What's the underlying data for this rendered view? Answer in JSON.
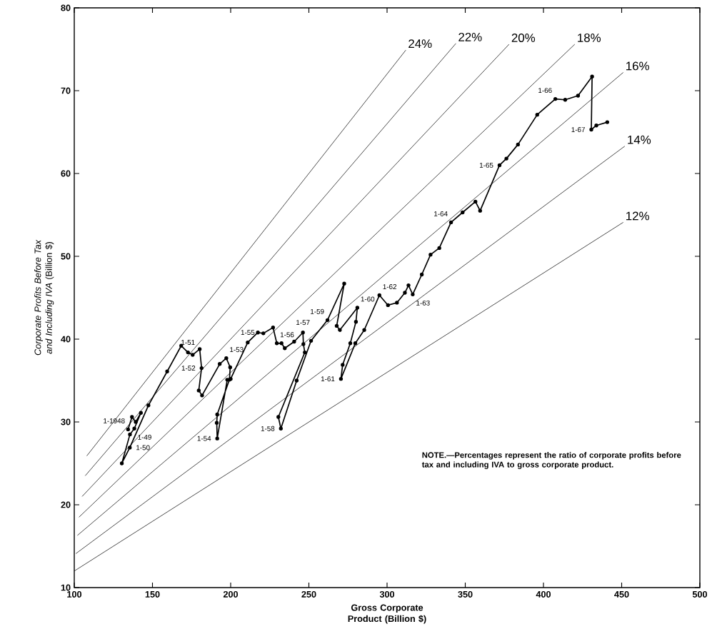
{
  "chart_data": {
    "type": "line",
    "xlabel": "Gross Corporate Product (Billion $)",
    "ylabel": "*Corporate Profits Before Tax and Including IVA* (Billion $)",
    "xlim": [
      100,
      500
    ],
    "ylim": [
      10,
      80
    ],
    "xticks": [
      100,
      150,
      200,
      250,
      300,
      350,
      400,
      450,
      500
    ],
    "yticks": [
      10,
      20,
      30,
      40,
      50,
      60,
      70,
      80
    ],
    "series": [
      {
        "color": "#000000",
        "marker": "circle",
        "x": [
          134.4,
          136.9,
          139.3,
          142.6,
          138.4,
          135.6,
          130.4,
          135.5,
          147.4,
          159.4,
          168.4,
          172.7,
          175.7,
          180.2,
          181.4,
          179.6,
          181.7,
          193.0,
          197.2,
          199.7,
          199.2,
          191.4,
          191.1,
          191.4,
          197.8,
          200.0,
          210.9,
          217.4,
          220.9,
          227.1,
          229.5,
          232.5,
          234.6,
          240.6,
          246.2,
          246.5,
          247.4,
          230.5,
          232.1,
          242.2,
          251.4,
          261.9,
          272.6,
          267.8,
          269.8,
          281.0,
          280.1,
          276.5,
          271.6,
          270.5,
          279.7,
          285.4,
          295.1,
          300.6,
          306.3,
          311.4,
          313.7,
          316.4,
          322.2,
          327.8,
          333.4,
          340.9,
          348.3,
          356.5,
          359.5,
          371.9,
          376.3,
          383.7,
          396.0,
          407.6,
          413.9,
          422.1,
          431.1,
          430.6,
          433.8,
          440.8
        ],
        "values": [
          29.1,
          30.6,
          30.0,
          31.1,
          29.2,
          28.5,
          25.0,
          26.9,
          32.0,
          36.1,
          39.2,
          38.4,
          38.1,
          38.8,
          36.5,
          33.8,
          33.2,
          37.0,
          37.7,
          36.6,
          35.1,
          30.9,
          29.9,
          28.0,
          35.1,
          35.2,
          39.6,
          40.8,
          40.7,
          41.4,
          39.5,
          39.5,
          38.9,
          39.7,
          40.8,
          39.4,
          38.4,
          30.6,
          29.2,
          35.0,
          39.8,
          42.3,
          46.7,
          41.6,
          41.1,
          43.8,
          42.1,
          39.5,
          36.9,
          35.2,
          39.5,
          41.1,
          45.3,
          44.1,
          44.4,
          45.6,
          46.5,
          45.4,
          47.8,
          50.2,
          51.0,
          54.1,
          55.3,
          56.6,
          55.5,
          61.0,
          61.8,
          63.5,
          67.1,
          69.0,
          68.9,
          69.4,
          71.7,
          65.3,
          65.8,
          66.2
        ]
      },
      {
        "name": "24%",
        "color": "#000000",
        "marker": "none",
        "x": [
          108,
          312
        ],
        "values": [
          25.9,
          74.9
        ]
      },
      {
        "name": "22%",
        "color": "#000000",
        "marker": "none",
        "x": [
          107,
          344
        ],
        "values": [
          23.5,
          75.7
        ]
      },
      {
        "name": "20%",
        "color": "#000000",
        "marker": "none",
        "x": [
          105,
          378
        ],
        "values": [
          21.0,
          75.6
        ]
      },
      {
        "name": "18%",
        "color": "#000000",
        "marker": "none",
        "x": [
          103,
          420
        ],
        "values": [
          18.5,
          75.6
        ]
      },
      {
        "name": "16%",
        "color": "#000000",
        "marker": "none",
        "x": [
          102,
          451
        ],
        "values": [
          16.3,
          72.2
        ]
      },
      {
        "name": "14%",
        "color": "#000000",
        "marker": "none",
        "x": [
          101,
          452
        ],
        "values": [
          14.1,
          63.3
        ]
      },
      {
        "name": "12%",
        "color": "#000000",
        "marker": "none",
        "x": [
          100,
          451
        ],
        "values": [
          12.0,
          54.1
        ]
      }
    ],
    "annotations": [
      {
        "text": "1-1948",
        "x": 134.4,
        "y": 29.1
      },
      {
        "text": "1-49",
        "x": 138.4,
        "y": 29.2
      },
      {
        "text": "1-50",
        "x": 135.5,
        "y": 26.9
      },
      {
        "text": "1-51",
        "x": 172.7,
        "y": 38.4
      },
      {
        "text": "1-52",
        "x": 181.4,
        "y": 36.5
      },
      {
        "text": "1-53",
        "x": 197.2,
        "y": 37.7
      },
      {
        "text": "1-54",
        "x": 191.4,
        "y": 28.0
      },
      {
        "text": "1-55",
        "x": 210.9,
        "y": 39.6
      },
      {
        "text": "1-56",
        "x": 229.5,
        "y": 39.5
      },
      {
        "text": "1-57",
        "x": 246.2,
        "y": 40.8
      },
      {
        "text": "1-58",
        "x": 232.1,
        "y": 29.2
      },
      {
        "text": "1-59",
        "x": 261.9,
        "y": 42.3
      },
      {
        "text": "1-60",
        "x": 281.0,
        "y": 43.8
      },
      {
        "text": "1-61",
        "x": 270.5,
        "y": 35.2
      },
      {
        "text": "1-62",
        "x": 295.1,
        "y": 45.3
      },
      {
        "text": "1-63",
        "x": 316.4,
        "y": 45.4
      },
      {
        "text": "1-64",
        "x": 340.9,
        "y": 54.1
      },
      {
        "text": "1-65",
        "x": 371.9,
        "y": 61.0
      },
      {
        "text": "1-66",
        "x": 407.6,
        "y": 69.0
      },
      {
        "text": "1-67",
        "x": 430.6,
        "y": 65.3
      },
      "NOTE.—Percentages represent the ratio of corporate profits before tax and including IVA to gross corporate product."
    ]
  }
}
